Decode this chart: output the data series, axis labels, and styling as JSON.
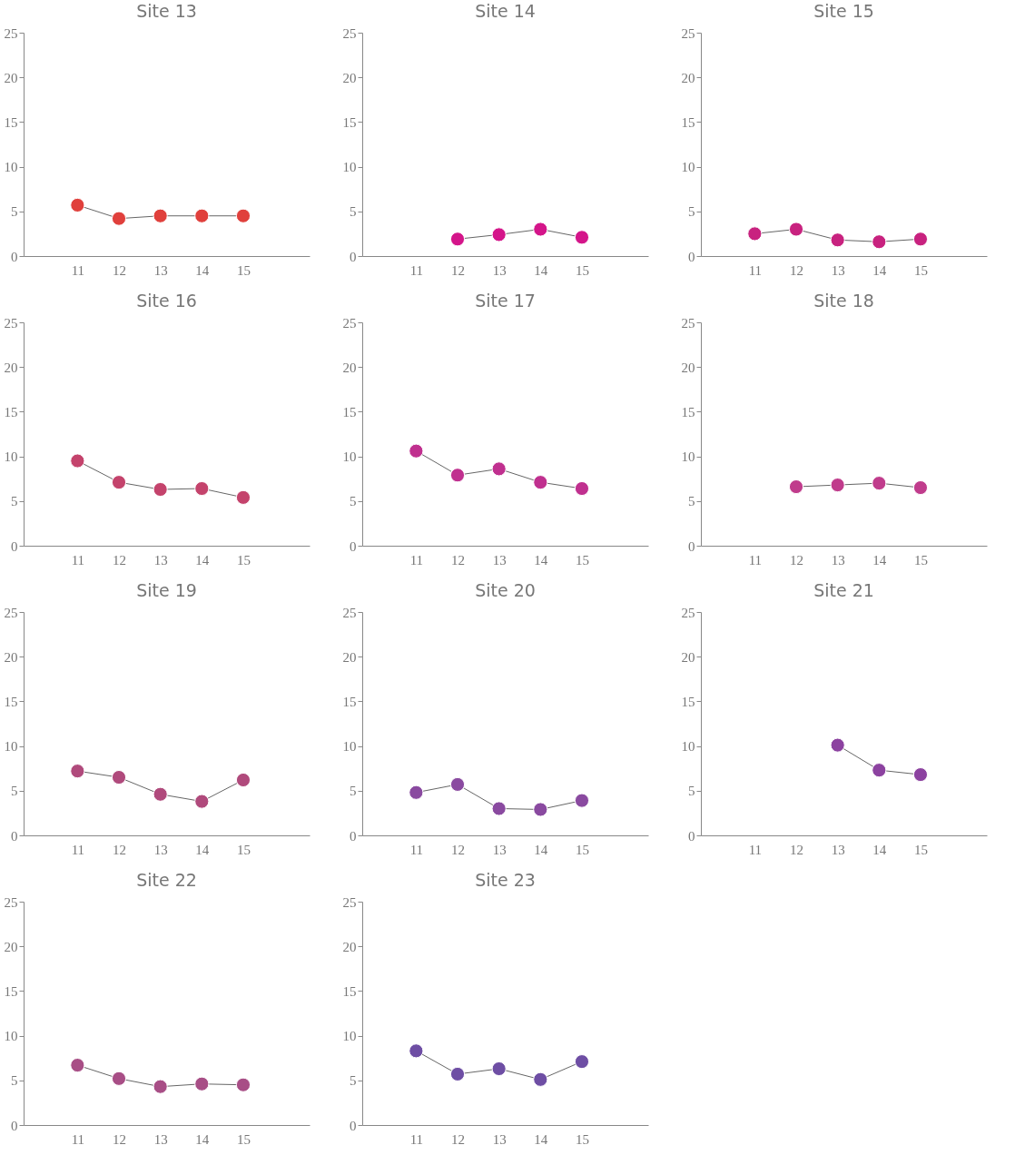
{
  "chart_data": [
    {
      "type": "line",
      "title": "Site 13",
      "categories": [
        "11",
        "12",
        "13",
        "14",
        "15"
      ],
      "values": [
        5.7,
        4.2,
        4.5,
        4.5,
        4.5
      ],
      "color": "#e0403c",
      "ylim": [
        0,
        25
      ],
      "yticks": [
        0,
        5,
        10,
        15,
        20,
        25
      ],
      "marker": "circle",
      "grid": false
    },
    {
      "type": "line",
      "title": "Site 14",
      "categories": [
        "11",
        "12",
        "13",
        "14",
        "15"
      ],
      "values": [
        null,
        1.9,
        2.4,
        3.0,
        2.1
      ],
      "color": "#d4158a",
      "ylim": [
        0,
        25
      ],
      "yticks": [
        0,
        5,
        10,
        15,
        20,
        25
      ],
      "marker": "circle",
      "grid": false
    },
    {
      "type": "line",
      "title": "Site 15",
      "categories": [
        "11",
        "12",
        "13",
        "14",
        "15"
      ],
      "values": [
        2.5,
        3.0,
        1.8,
        1.6,
        1.9
      ],
      "color": "#c8227f",
      "ylim": [
        0,
        25
      ],
      "yticks": [
        0,
        5,
        10,
        15,
        20,
        25
      ],
      "marker": "circle",
      "grid": false
    },
    {
      "type": "line",
      "title": "Site 16",
      "categories": [
        "11",
        "12",
        "13",
        "14",
        "15"
      ],
      "values": [
        9.5,
        7.1,
        6.3,
        6.4,
        5.4
      ],
      "color": "#c4436c",
      "ylim": [
        0,
        25
      ],
      "yticks": [
        0,
        5,
        10,
        15,
        20,
        25
      ],
      "marker": "circle",
      "grid": false
    },
    {
      "type": "line",
      "title": "Site 17",
      "categories": [
        "11",
        "12",
        "13",
        "14",
        "15"
      ],
      "values": [
        10.6,
        7.9,
        8.6,
        7.1,
        6.4
      ],
      "color": "#c0308f",
      "ylim": [
        0,
        25
      ],
      "yticks": [
        0,
        5,
        10,
        15,
        20,
        25
      ],
      "marker": "circle",
      "grid": false
    },
    {
      "type": "line",
      "title": "Site 18",
      "categories": [
        "11",
        "12",
        "13",
        "14",
        "15"
      ],
      "values": [
        null,
        6.6,
        6.8,
        7.0,
        6.5
      ],
      "color": "#c03c8c",
      "ylim": [
        0,
        25
      ],
      "yticks": [
        0,
        5,
        10,
        15,
        20,
        25
      ],
      "marker": "circle",
      "grid": false
    },
    {
      "type": "line",
      "title": "Site 19",
      "categories": [
        "11",
        "12",
        "13",
        "14",
        "15"
      ],
      "values": [
        7.2,
        6.5,
        4.6,
        3.8,
        6.2
      ],
      "color": "#b04a7c",
      "ylim": [
        0,
        25
      ],
      "yticks": [
        0,
        5,
        10,
        15,
        20,
        25
      ],
      "marker": "circle",
      "grid": false
    },
    {
      "type": "line",
      "title": "Site 20",
      "categories": [
        "11",
        "12",
        "13",
        "14",
        "15"
      ],
      "values": [
        4.8,
        5.7,
        3.0,
        2.9,
        3.9
      ],
      "color": "#8a4aa0",
      "ylim": [
        0,
        25
      ],
      "yticks": [
        0,
        5,
        10,
        15,
        20,
        25
      ],
      "marker": "circle",
      "grid": false
    },
    {
      "type": "line",
      "title": "Site 21",
      "categories": [
        "11",
        "12",
        "13",
        "14",
        "15"
      ],
      "values": [
        null,
        null,
        10.1,
        7.3,
        6.8
      ],
      "color": "#8c42a0",
      "ylim": [
        0,
        25
      ],
      "yticks": [
        0,
        5,
        10,
        15,
        20,
        25
      ],
      "marker": "circle",
      "grid": false
    },
    {
      "type": "line",
      "title": "Site 22",
      "categories": [
        "11",
        "12",
        "13",
        "14",
        "15"
      ],
      "values": [
        6.7,
        5.2,
        4.3,
        4.6,
        4.5
      ],
      "color": "#a84e86",
      "ylim": [
        0,
        25
      ],
      "yticks": [
        0,
        5,
        10,
        15,
        20,
        25
      ],
      "marker": "circle",
      "grid": false
    },
    {
      "type": "line",
      "title": "Site 23",
      "categories": [
        "11",
        "12",
        "13",
        "14",
        "15"
      ],
      "values": [
        8.3,
        5.7,
        6.3,
        5.1,
        7.1
      ],
      "color": "#6e4ea4",
      "ylim": [
        0,
        25
      ],
      "yticks": [
        0,
        5,
        10,
        15,
        20,
        25
      ],
      "marker": "circle",
      "grid": false
    }
  ]
}
